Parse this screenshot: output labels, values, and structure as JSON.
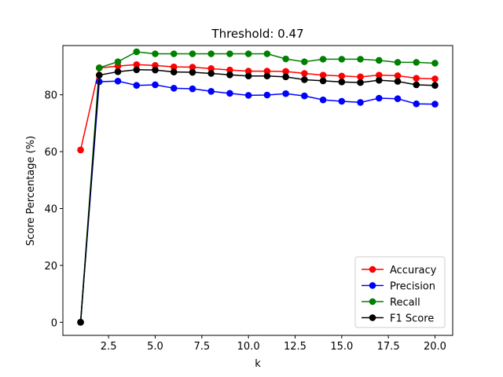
{
  "chart_data": {
    "type": "line",
    "title": "Threshold: 0.47",
    "xlabel": "k",
    "ylabel": "Score Percentage (%)",
    "xlim": [
      0.05,
      20.95
    ],
    "ylim": [
      -4.6,
      97.3
    ],
    "xticks": [
      2.5,
      5.0,
      7.5,
      10.0,
      12.5,
      15.0,
      17.5,
      20.0
    ],
    "xtick_labels": [
      "2.5",
      "5.0",
      "7.5",
      "10.0",
      "12.5",
      "15.0",
      "17.5",
      "20.0"
    ],
    "yticks": [
      0,
      20,
      40,
      60,
      80
    ],
    "ytick_labels": [
      "0",
      "20",
      "40",
      "60",
      "80"
    ],
    "grid": false,
    "legend_position": "lower-right",
    "x": [
      1,
      2,
      3,
      4,
      5,
      6,
      7,
      8,
      9,
      10,
      11,
      12,
      13,
      14,
      15,
      16,
      17,
      18,
      19,
      20
    ],
    "series": [
      {
        "name": "Accuracy",
        "color": "#ff0000",
        "values": [
          60.6,
          89.4,
          90.1,
          90.6,
          90.3,
          89.8,
          89.7,
          89.2,
          88.7,
          88.3,
          88.3,
          88.2,
          87.5,
          86.9,
          86.6,
          86.3,
          86.9,
          86.7,
          85.8,
          85.6
        ]
      },
      {
        "name": "Precision",
        "color": "#0000ff",
        "values": [
          0.0,
          84.6,
          84.8,
          83.3,
          83.5,
          82.3,
          82.1,
          81.2,
          80.5,
          79.8,
          79.9,
          80.4,
          79.6,
          78.2,
          77.7,
          77.3,
          78.8,
          78.6,
          76.8,
          76.7
        ]
      },
      {
        "name": "Recall",
        "color": "#008000",
        "values": [
          0.0,
          89.5,
          91.6,
          95.1,
          94.4,
          94.4,
          94.4,
          94.4,
          94.4,
          94.4,
          94.4,
          92.6,
          91.6,
          92.5,
          92.5,
          92.5,
          92.1,
          91.4,
          91.4,
          91.1
        ]
      },
      {
        "name": "F1 Score",
        "color": "#000000",
        "values": [
          0.0,
          86.9,
          88.1,
          88.8,
          88.7,
          88.0,
          87.9,
          87.5,
          87.0,
          86.6,
          86.6,
          86.3,
          85.3,
          84.9,
          84.5,
          84.3,
          85.1,
          84.7,
          83.5,
          83.3
        ]
      }
    ]
  }
}
